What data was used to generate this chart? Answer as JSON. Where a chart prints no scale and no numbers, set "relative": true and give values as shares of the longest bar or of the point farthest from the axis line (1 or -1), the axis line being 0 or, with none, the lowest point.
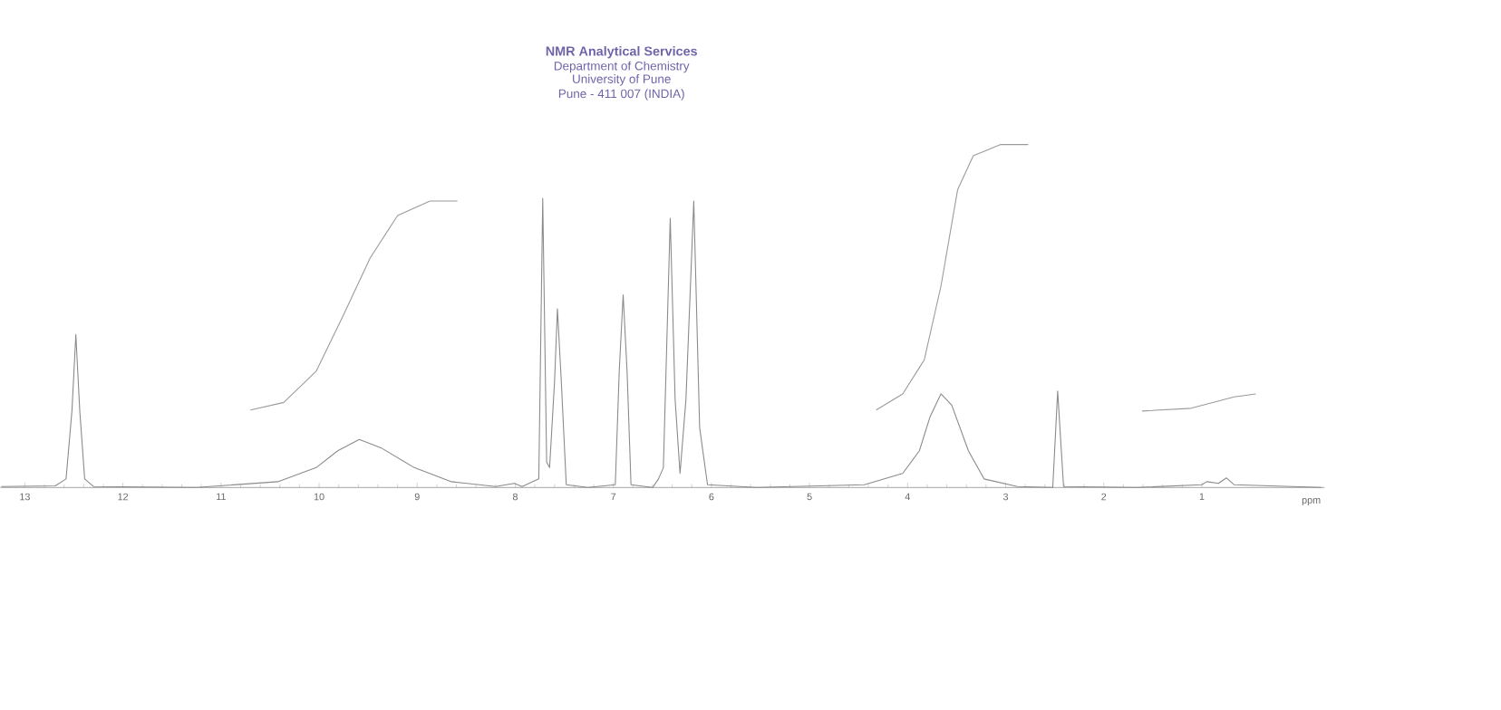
{
  "chart_data": {
    "type": "line",
    "title": "NMR Analytical Services",
    "annotations": [
      "Department of Chemistry",
      "University of Pune",
      "Pune - 411 007 (INDIA)"
    ],
    "xlabel": "ppm",
    "relative": true,
    "xlim": [
      13.25,
      -0.25
    ],
    "xticks": [
      13,
      12,
      11,
      10,
      9,
      8,
      7,
      6,
      5,
      4,
      3,
      2,
      1
    ],
    "series": [
      {
        "color": "#8a8a8a",
        "x": [
          13.24,
          12.69,
          12.58,
          12.52,
          12.48,
          12.44,
          12.39,
          12.3,
          11.25,
          10.42,
          10.03,
          9.81,
          9.59,
          9.37,
          9.03,
          8.65,
          8.2,
          8.01,
          7.93,
          7.76,
          7.72,
          7.68,
          7.65,
          7.6,
          7.57,
          7.53,
          7.48,
          7.26,
          6.98,
          6.94,
          6.9,
          6.86,
          6.82,
          6.6,
          6.54,
          6.49,
          6.42,
          6.37,
          6.32,
          6.26,
          6.18,
          6.12,
          6.04,
          5.54,
          4.44,
          4.05,
          3.88,
          3.77,
          3.66,
          3.55,
          3.38,
          3.22,
          2.88,
          2.52,
          2.47,
          2.41,
          1.67,
          1.0,
          0.95,
          0.83,
          0.75,
          0.67,
          -0.22
        ],
        "values": [
          0.003,
          0.005,
          0.025,
          0.223,
          0.446,
          0.223,
          0.025,
          0.003,
          0,
          0.017,
          0.058,
          0.107,
          0.14,
          0.116,
          0.058,
          0.017,
          0.003,
          0.012,
          0.003,
          0.025,
          0.843,
          0.074,
          0.058,
          0.306,
          0.521,
          0.306,
          0.008,
          0,
          0.008,
          0.339,
          0.562,
          0.339,
          0.008,
          0,
          0.025,
          0.058,
          0.785,
          0.256,
          0.041,
          0.256,
          0.835,
          0.174,
          0.008,
          0,
          0.008,
          0.041,
          0.107,
          0.207,
          0.273,
          0.24,
          0.107,
          0.025,
          0.003,
          0,
          0.281,
          0.003,
          0,
          0.008,
          0.017,
          0.012,
          0.028,
          0.008,
          0
        ]
      },
      {
        "color": "#9a9a9a",
        "x": [
          10.7,
          10.36,
          10.03,
          9.75,
          9.48,
          9.2,
          8.87,
          8.59,
          6.0,
          4.32,
          4.05,
          3.83,
          3.66,
          3.49,
          3.33,
          3.05,
          2.77,
          2.0,
          1.61,
          1.11,
          0.67,
          0.45
        ],
        "values": [
          0.226,
          0.248,
          0.339,
          0.504,
          0.669,
          0.793,
          0.835,
          0.835,
          null,
          0.226,
          0.273,
          0.372,
          0.587,
          0.868,
          0.967,
          1.0,
          1.0,
          null,
          0.223,
          0.231,
          0.264,
          0.273
        ]
      }
    ]
  }
}
